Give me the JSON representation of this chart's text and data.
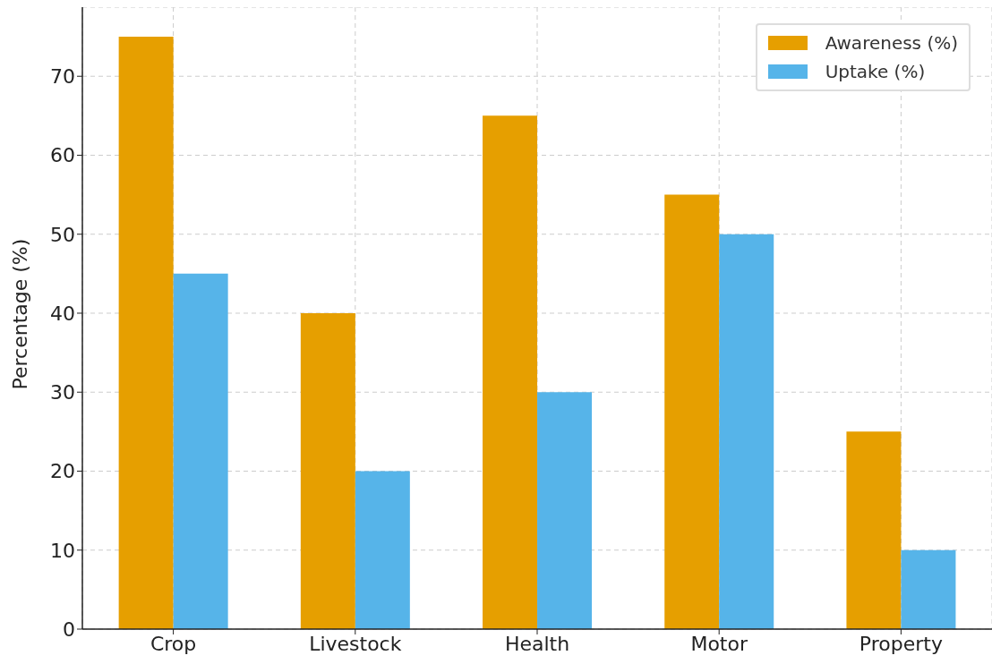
{
  "chart_data": {
    "type": "bar",
    "ylabel": "Percentage (%)",
    "categories": [
      "Crop",
      "Livestock",
      "Health",
      "Motor",
      "Property"
    ],
    "series": [
      {
        "name": "Awareness (%)",
        "color": "#e69f00",
        "values": [
          75,
          40,
          65,
          55,
          25
        ]
      },
      {
        "name": "Uptake (%)",
        "color": "#56b4e9",
        "values": [
          45,
          20,
          30,
          50,
          10
        ]
      }
    ],
    "ylim": [
      0,
      78.75
    ],
    "yticks": [
      0,
      10,
      20,
      30,
      40,
      50,
      60,
      70
    ],
    "grid": true,
    "legend": "top right"
  }
}
